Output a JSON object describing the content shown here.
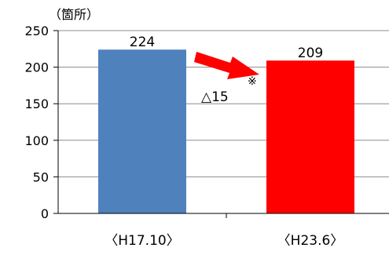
{
  "chart_data": {
    "type": "bar",
    "unit_label": "（箇所）",
    "categories": [
      "〈H17.10〉",
      "〈H23.6〉"
    ],
    "values": [
      224,
      209
    ],
    "data_labels": [
      "224",
      "209"
    ],
    "bar_colors": [
      "#4F81BD",
      "#FF0000"
    ],
    "ylim": [
      0,
      250
    ],
    "yticks": [
      0,
      50,
      100,
      150,
      200,
      250
    ],
    "ytick_labels": [
      "0",
      "50",
      "100",
      "150",
      "200",
      "250"
    ],
    "grid": true,
    "legend": "none",
    "annotation": {
      "text": "△15",
      "mark": "※",
      "arrow_color": "#FF0000",
      "arrow_from": "224",
      "arrow_to": "209"
    }
  }
}
